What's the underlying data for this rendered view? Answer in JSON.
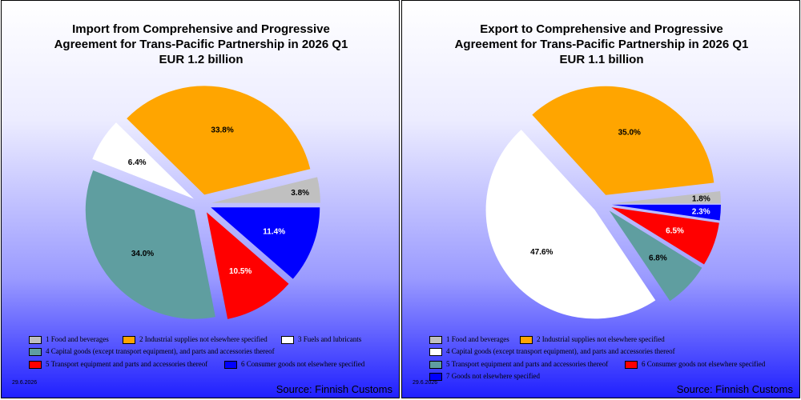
{
  "chart_data": [
    {
      "type": "pie",
      "title_lines": [
        "Import from Comprehensive and Progressive",
        "Agreement for Trans-Pacific Partnership in 2026 Q1",
        "EUR   1.2 billion"
      ],
      "slices": [
        {
          "name": "1 Food and beverages",
          "value": 3.8,
          "label": "3.8%",
          "color": "#c0c0c0"
        },
        {
          "name": "2 Industrial supplies not elsewhere specified",
          "value": 33.8,
          "label": "33.8%",
          "color": "#ffa500"
        },
        {
          "name": "3 Fuels and lubricants",
          "value": 6.4,
          "label": "6.4%",
          "color": "#ffffff"
        },
        {
          "name": "4 Capital goods (except transport equipment), and parts and accessories thereof",
          "value": 34.0,
          "label": "34.0%",
          "color": "#5f9ea0"
        },
        {
          "name": "5  Transport equipment and parts and accessories thereof",
          "value": 10.5,
          "label": "10.5%",
          "color": "#ff0000"
        },
        {
          "name": "6 Consumer goods not elsewhere specified",
          "value": 11.4,
          "label": "11.4%",
          "color": "#0000ff"
        }
      ],
      "date": "29.6.2026",
      "source": "Source: Finnish Customs"
    },
    {
      "type": "pie",
      "title_lines": [
        "Export to Comprehensive and Progressive",
        "Agreement for Trans-Pacific Partnership in 2026 Q1",
        "EUR   1.1 billion"
      ],
      "slices": [
        {
          "name": "1 Food and beverages",
          "value": 1.8,
          "label": "1.8%",
          "color": "#c0c0c0"
        },
        {
          "name": "2 Industrial supplies not elsewhere specified",
          "value": 35.0,
          "label": "35.0%",
          "color": "#ffa500"
        },
        {
          "name": "4 Capital goods (except transport equipment), and parts and accessories thereof",
          "value": 47.6,
          "label": "47.6%",
          "color": "#ffffff"
        },
        {
          "name": "5  Transport equipment and parts and accessories thereof",
          "value": 6.8,
          "label": "6.8%",
          "color": "#5f9ea0"
        },
        {
          "name": "6 Consumer goods not elsewhere specified",
          "value": 6.5,
          "label": "6.5%",
          "color": "#ff0000"
        },
        {
          "name": "7 Goods not elsewhere specified",
          "value": 2.3,
          "label": "2.3%",
          "color": "#0000ff"
        }
      ],
      "date": "29.6.2026",
      "source": "Source: Finnish Customs"
    }
  ]
}
